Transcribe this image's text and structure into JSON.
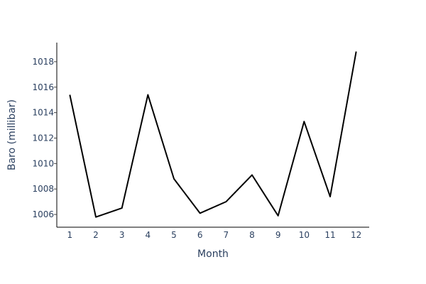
{
  "chart_data": {
    "type": "line",
    "title": "",
    "xlabel": "Month",
    "ylabel": "Baro (millibar)",
    "x": [
      1,
      2,
      3,
      4,
      5,
      6,
      7,
      8,
      9,
      10,
      11,
      12
    ],
    "series": [
      {
        "values": [
          1015.4,
          1005.8,
          1006.5,
          1015.4,
          1008.8,
          1006.1,
          1007.0,
          1009.1,
          1005.9,
          1013.3,
          1007.4,
          1018.8
        ]
      }
    ],
    "xticks": [
      "1",
      "2",
      "3",
      "4",
      "5",
      "6",
      "7",
      "8",
      "9",
      "10",
      "11",
      "12"
    ],
    "yticks": [
      "1006",
      "1008",
      "1010",
      "1012",
      "1014",
      "1016",
      "1018"
    ],
    "xlim": [
      0.5,
      12.5
    ],
    "ylim": [
      1005.0,
      1019.5
    ],
    "grid": false,
    "line_color": "#000000"
  }
}
